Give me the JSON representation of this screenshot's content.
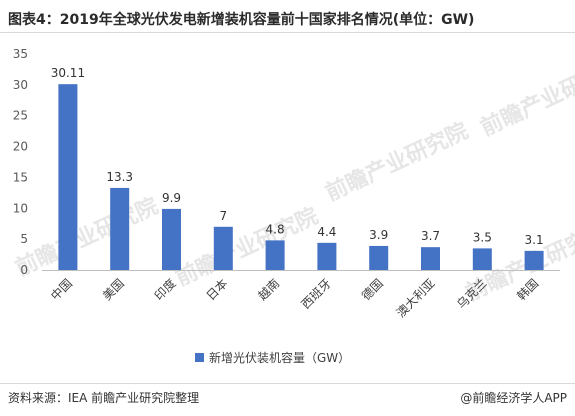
{
  "header": {
    "title": "图表4：2019年全球光伏发电新增装机容量前十国家排名情况(单位：GW)"
  },
  "footer": {
    "source": "资料来源：IEA 前瞻产业研究院整理",
    "brand": "@前瞻经济学人APP"
  },
  "colors": {
    "bar": "#4472c4",
    "watermark": "#e6e6e6"
  },
  "chart_data": {
    "type": "bar",
    "categories": [
      "中国",
      "美国",
      "印度",
      "日本",
      "越南",
      "西班牙",
      "德国",
      "澳大利亚",
      "乌克兰",
      "韩国"
    ],
    "series": [
      {
        "name": "新增光伏装机容量（GW）",
        "values": [
          30.11,
          13.3,
          9.9,
          7,
          4.8,
          4.4,
          3.9,
          3.7,
          3.5,
          3.1
        ]
      }
    ],
    "data_labels": [
      "30.11",
      "13.3",
      "9.9",
      "7",
      "4.8",
      "4.4",
      "3.9",
      "3.7",
      "3.5",
      "3.1"
    ],
    "yticks": [
      0,
      5,
      10,
      15,
      20,
      25,
      30,
      35
    ],
    "ylim": [
      0,
      35
    ],
    "grid": false,
    "legend_position": "bottom"
  }
}
